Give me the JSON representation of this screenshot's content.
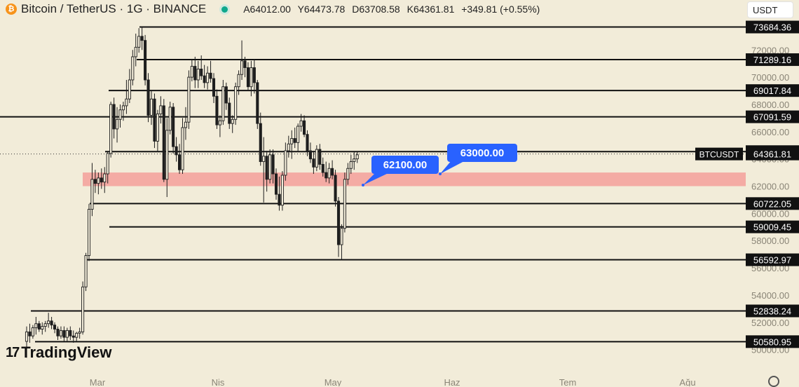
{
  "header": {
    "title": "Bitcoin / TetherUS · 1G · BINANCE",
    "coin_glyph": "₿",
    "open": "A64012.00",
    "high": "Y64473.78",
    "low": "D63708.58",
    "close": "K64361.81",
    "change": "+349.81 (+0.55%)",
    "live_status_color": "#0fa88c"
  },
  "currency_selector": {
    "value": "USDT"
  },
  "branding": {
    "logo_mark": "17",
    "logo_text": "TradingView"
  },
  "colors": {
    "background": "#f2ecd9",
    "candle_body": "#1e1e1e",
    "hline": "#111111",
    "zone": "#f4a09a",
    "annotation": "#2962ff"
  },
  "chart_data": {
    "type": "candlestick",
    "symbol_tag": "BTCUSDT",
    "last_price": "64361.81",
    "ylim": [
      49000,
      74500
    ],
    "grid": false,
    "x_labels": [
      "Mar",
      "Nis",
      "May",
      "Haz",
      "Tem",
      "Ağu"
    ],
    "y_tick_labels": [
      "50000.00",
      "52000.00",
      "54000.00",
      "56000.00",
      "58000.00",
      "60000.00",
      "62000.00",
      "64000.00",
      "66000.00",
      "68000.00",
      "70000.00",
      "72000.00"
    ],
    "horizontal_levels": [
      "73684.36",
      "71289.16",
      "69017.84",
      "67091.59",
      "64534.99",
      "60722.05",
      "59009.45",
      "56592.97",
      "52838.24",
      "50580.95"
    ],
    "zone": [
      62000,
      63000
    ],
    "annotations": [
      "62100.00",
      "63000.00"
    ],
    "candles": [
      [
        50600,
        51700,
        49400,
        51300
      ],
      [
        51300,
        51900,
        50500,
        51000
      ],
      [
        51000,
        51800,
        50800,
        51600
      ],
      [
        51600,
        52400,
        51100,
        51900
      ],
      [
        51900,
        52100,
        51300,
        51500
      ],
      [
        51500,
        52000,
        51100,
        51700
      ],
      [
        51700,
        52100,
        51300,
        51900
      ],
      [
        51900,
        52700,
        51600,
        52100
      ],
      [
        52100,
        52400,
        51500,
        51800
      ],
      [
        51800,
        52000,
        51200,
        51500
      ],
      [
        51500,
        51700,
        50700,
        51000
      ],
      [
        51000,
        51700,
        50800,
        51400
      ],
      [
        51400,
        51700,
        50600,
        50900
      ],
      [
        50900,
        51600,
        50600,
        51400
      ],
      [
        51400,
        51700,
        50700,
        51000
      ],
      [
        51000,
        51400,
        50500,
        50900
      ],
      [
        50900,
        51300,
        50600,
        51200
      ],
      [
        51200,
        51600,
        50800,
        51300
      ],
      [
        51300,
        55000,
        51100,
        54600
      ],
      [
        54600,
        57100,
        54300,
        56900
      ],
      [
        56900,
        60700,
        56500,
        60300
      ],
      [
        60300,
        63700,
        59800,
        62500
      ],
      [
        62500,
        63200,
        61500,
        62200
      ],
      [
        62200,
        63000,
        61400,
        62600
      ],
      [
        62600,
        63300,
        61800,
        62300
      ],
      [
        62300,
        63400,
        61500,
        62900
      ],
      [
        62900,
        64500,
        62200,
        64400
      ],
      [
        64400,
        68200,
        64100,
        68000
      ],
      [
        68000,
        68500,
        65500,
        66200
      ],
      [
        66200,
        67800,
        65200,
        66900
      ],
      [
        66900,
        68000,
        66300,
        67600
      ],
      [
        67600,
        68200,
        66800,
        67900
      ],
      [
        67900,
        69800,
        67300,
        68400
      ],
      [
        68400,
        70600,
        68100,
        69800
      ],
      [
        69800,
        72000,
        69400,
        71500
      ],
      [
        71500,
        73200,
        70800,
        72200
      ],
      [
        72200,
        73600,
        71800,
        73000
      ],
      [
        73000,
        73700,
        72000,
        72700
      ],
      [
        72700,
        73100,
        69400,
        69800
      ],
      [
        69800,
        70300,
        66700,
        67200
      ],
      [
        67200,
        69000,
        66500,
        68400
      ],
      [
        68400,
        68800,
        64800,
        65300
      ],
      [
        65300,
        67600,
        64500,
        67300
      ],
      [
        67300,
        68600,
        66600,
        67900
      ],
      [
        67900,
        68400,
        62300,
        62500
      ],
      [
        62500,
        67000,
        61200,
        66100
      ],
      [
        66100,
        68200,
        65800,
        67800
      ],
      [
        67800,
        68100,
        64400,
        64900
      ],
      [
        64900,
        65600,
        63800,
        64300
      ],
      [
        64300,
        65100,
        62900,
        63200
      ],
      [
        63200,
        67000,
        62900,
        66300
      ],
      [
        66300,
        67800,
        65400,
        66700
      ],
      [
        66700,
        70500,
        66200,
        70000
      ],
      [
        70000,
        71300,
        69700,
        70800
      ],
      [
        70800,
        71500,
        69200,
        69800
      ],
      [
        69800,
        71200,
        69200,
        70600
      ],
      [
        70600,
        71600,
        69800,
        70100
      ],
      [
        70100,
        70900,
        69200,
        69600
      ],
      [
        69600,
        70800,
        69100,
        70300
      ],
      [
        70300,
        71200,
        69600,
        69900
      ],
      [
        69900,
        70300,
        68100,
        68600
      ],
      [
        68600,
        69100,
        66200,
        66500
      ],
      [
        66500,
        67200,
        65600,
        66800
      ],
      [
        66800,
        69800,
        66500,
        69300
      ],
      [
        69300,
        69600,
        67600,
        68100
      ],
      [
        68100,
        68500,
        66200,
        66600
      ],
      [
        66600,
        67200,
        65900,
        66900
      ],
      [
        66900,
        69600,
        66500,
        69300
      ],
      [
        69300,
        70500,
        68700,
        70200
      ],
      [
        70200,
        72700,
        69800,
        71200
      ],
      [
        71200,
        71500,
        70000,
        70700
      ],
      [
        70700,
        71100,
        69000,
        69300
      ],
      [
        69300,
        71200,
        68600,
        70700
      ],
      [
        70700,
        71300,
        68800,
        69600
      ],
      [
        69600,
        69800,
        66200,
        66600
      ],
      [
        66600,
        67400,
        63500,
        63800
      ],
      [
        63800,
        65600,
        60800,
        64200
      ],
      [
        64200,
        64600,
        61600,
        62500
      ],
      [
        62500,
        64700,
        62200,
        64300
      ],
      [
        64300,
        64700,
        62200,
        62900
      ],
      [
        62900,
        63300,
        61000,
        61400
      ],
      [
        61400,
        62700,
        60200,
        60600
      ],
      [
        60600,
        63100,
        60200,
        62800
      ],
      [
        62800,
        65200,
        62400,
        64600
      ],
      [
        64600,
        65700,
        64100,
        65100
      ],
      [
        65100,
        66100,
        64000,
        65500
      ],
      [
        65500,
        66300,
        64800,
        65200
      ],
      [
        65200,
        66600,
        64500,
        66400
      ],
      [
        66400,
        67300,
        66000,
        66800
      ],
      [
        66800,
        67200,
        65600,
        65800
      ],
      [
        65800,
        66100,
        64200,
        64600
      ],
      [
        64600,
        65200,
        63700,
        64000
      ],
      [
        64000,
        64600,
        62900,
        63400
      ],
      [
        63400,
        65000,
        63100,
        64700
      ],
      [
        64700,
        65100,
        63200,
        63600
      ],
      [
        63600,
        64100,
        62700,
        63000
      ],
      [
        63000,
        63800,
        62300,
        62600
      ],
      [
        62600,
        63700,
        62200,
        63300
      ],
      [
        63300,
        63900,
        62500,
        62800
      ],
      [
        62800,
        63200,
        60500,
        60900
      ],
      [
        60900,
        61200,
        56800,
        57700
      ],
      [
        57700,
        59200,
        56600,
        58900
      ],
      [
        58900,
        63000,
        58600,
        62500
      ],
      [
        62500,
        63700,
        62100,
        63300
      ],
      [
        63300,
        64300,
        62900,
        63800
      ],
      [
        63800,
        64500,
        63200,
        64000
      ],
      [
        64000,
        64500,
        63700,
        64300
      ]
    ]
  }
}
